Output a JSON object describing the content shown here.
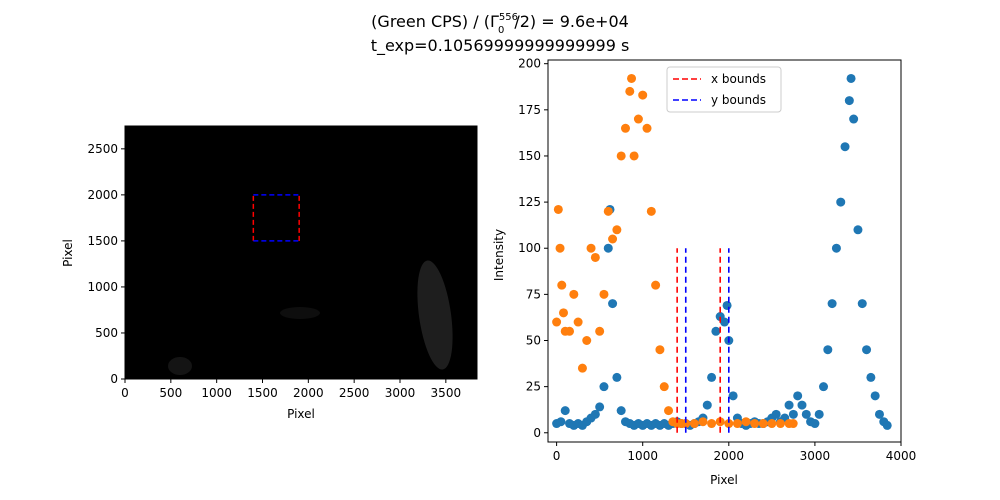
{
  "figure": {
    "title_line1_prefix": "(Green CPS) / (Γ",
    "title_line1_sub": "0",
    "title_line1_sup": "556",
    "title_line1_suffix": "/2) = 9.6e+04",
    "title_line2": "t_exp=0.10569999999999999 s"
  },
  "colors": {
    "series_blue": "#1f77b4",
    "series_orange": "#ff7f0e",
    "x_bounds": "#ff0000",
    "y_bounds": "#0000ff",
    "image_background": "#000000"
  },
  "chart_data": [
    {
      "type": "heatmap",
      "description_kind": "grayscale camera image",
      "xlabel": "Pixel",
      "ylabel": "Pixel",
      "xlim": [
        0,
        3840
      ],
      "ylim": [
        0,
        2748
      ],
      "xticks": [
        0,
        500,
        1000,
        1500,
        2000,
        2500,
        3000,
        3500
      ],
      "yticks": [
        0,
        500,
        1000,
        1500,
        2000,
        2500
      ],
      "x_bounds": [
        1400,
        1900
      ],
      "y_bounds": [
        1500,
        2000
      ]
    },
    {
      "type": "scatter",
      "xlabel": "Pixel",
      "ylabel": "Intensity",
      "xlim": [
        -100,
        4000
      ],
      "ylim": [
        -5,
        202
      ],
      "xticks": [
        0,
        1000,
        2000,
        3000,
        4000
      ],
      "yticks": [
        0,
        25,
        50,
        75,
        100,
        125,
        150,
        175,
        200
      ],
      "legend": {
        "placement": "top-center",
        "entries": [
          {
            "label": "x bounds",
            "color": "#ff0000",
            "style": "dashed"
          },
          {
            "label": "y bounds",
            "color": "#0000ff",
            "style": "dashed"
          }
        ]
      },
      "vlines": [
        {
          "group": "x bounds",
          "x": 1400,
          "ymin": 0,
          "ymax": 100
        },
        {
          "group": "x bounds",
          "x": 1900,
          "ymin": 0,
          "ymax": 100
        },
        {
          "group": "y bounds",
          "x": 1500,
          "ymin": 0,
          "ymax": 100
        },
        {
          "group": "y bounds",
          "x": 2000,
          "ymin": 0,
          "ymax": 100
        }
      ],
      "series": [
        {
          "color": "#1f77b4",
          "x": [
            0,
            50,
            100,
            150,
            200,
            250,
            300,
            350,
            400,
            450,
            500,
            550,
            600,
            620,
            650,
            700,
            750,
            800,
            850,
            900,
            950,
            1000,
            1050,
            1100,
            1150,
            1200,
            1250,
            1300,
            1350,
            1400,
            1450,
            1500,
            1550,
            1600,
            1650,
            1700,
            1750,
            1800,
            1850,
            1900,
            1950,
            1980,
            2000,
            2050,
            2100,
            2150,
            2200,
            2250,
            2300,
            2350,
            2400,
            2450,
            2500,
            2550,
            2600,
            2650,
            2700,
            2750,
            2800,
            2850,
            2900,
            2950,
            3000,
            3050,
            3100,
            3150,
            3200,
            3250,
            3300,
            3350,
            3400,
            3420,
            3450,
            3500,
            3550,
            3600,
            3650,
            3700,
            3750,
            3800,
            3840
          ],
          "y": [
            5,
            6,
            12,
            5,
            4,
            5,
            4,
            6,
            8,
            10,
            14,
            25,
            100,
            121,
            70,
            30,
            12,
            6,
            5,
            4,
            5,
            4,
            5,
            4,
            5,
            4,
            5,
            4,
            5,
            6,
            5,
            5,
            4,
            5,
            6,
            8,
            15,
            30,
            55,
            63,
            60,
            69,
            50,
            20,
            8,
            5,
            4,
            5,
            6,
            5,
            5,
            6,
            8,
            10,
            6,
            8,
            15,
            10,
            20,
            15,
            10,
            6,
            5,
            10,
            25,
            45,
            70,
            100,
            125,
            155,
            180,
            192,
            170,
            110,
            70,
            45,
            30,
            20,
            10,
            6,
            4
          ]
        },
        {
          "color": "#ff7f0e",
          "x": [
            0,
            20,
            40,
            60,
            80,
            100,
            150,
            200,
            250,
            300,
            350,
            400,
            450,
            500,
            550,
            600,
            650,
            700,
            750,
            800,
            850,
            870,
            900,
            950,
            1000,
            1050,
            1100,
            1150,
            1200,
            1250,
            1300,
            1350,
            1400,
            1450,
            1500,
            1600,
            1700,
            1800,
            1900,
            2000,
            2100,
            2200,
            2300,
            2400,
            2500,
            2600,
            2700,
            2748
          ],
          "y": [
            60,
            121,
            100,
            80,
            65,
            55,
            55,
            75,
            60,
            35,
            50,
            100,
            95,
            55,
            75,
            120,
            105,
            110,
            150,
            165,
            185,
            192,
            150,
            170,
            183,
            165,
            120,
            80,
            45,
            25,
            12,
            6,
            5,
            5,
            5,
            5,
            6,
            5,
            6,
            5,
            5,
            6,
            5,
            5,
            5,
            5,
            5,
            5
          ]
        }
      ]
    }
  ]
}
